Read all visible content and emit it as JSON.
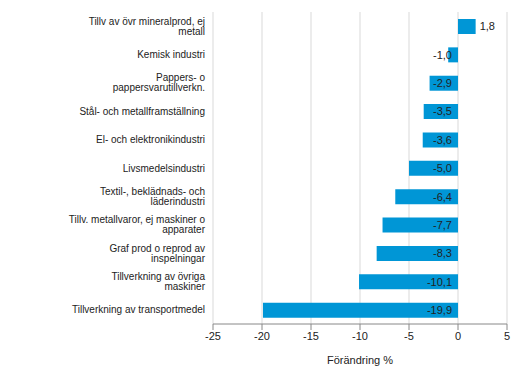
{
  "chart_data": {
    "type": "bar",
    "orientation": "horizontal",
    "x_label": "Förändring %",
    "categories": [
      "Tillv av övr mineralprod, ej metall",
      "Kemisk industri",
      "Pappers- o pappersvarutillverkn.",
      "Stål- och metallframställning",
      "El- och elektronikindustri",
      "Livsmedelsindustri",
      "Textil-, beklädnads- och läderindustri",
      "Tillv. metallvaror, ej maskiner o apparater",
      "Graf prod o reprod av inspelningar",
      "Tillverkning av övriga maskiner",
      "Tillverkning av transportmedel"
    ],
    "values": [
      1.8,
      -1.0,
      -2.9,
      -3.5,
      -3.6,
      -5.0,
      -6.4,
      -7.7,
      -8.3,
      -10.1,
      -19.9
    ],
    "value_labels": [
      "1,8",
      "-1,0",
      "-2,9",
      "-3,5",
      "-3,6",
      "-5,0",
      "-6,4",
      "-7,7",
      "-8,3",
      "-10,1",
      "-19,9"
    ],
    "color": "#0096d6",
    "xlim": [
      -25,
      5
    ],
    "xticks": [
      -25,
      -20,
      -15,
      -10,
      -5,
      0,
      5
    ],
    "grid": true,
    "data_labels": true
  }
}
